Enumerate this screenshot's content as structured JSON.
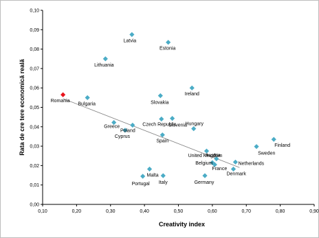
{
  "chart_data": {
    "type": "scatter",
    "xlabel": "Creativity index",
    "ylabel": "Rata de cre tere economică reală",
    "xlim": [
      0.1,
      0.9
    ],
    "ylim": [
      0.0,
      0.1
    ],
    "x_ticks": [
      "0,10",
      "0,20",
      "0,30",
      "0,40",
      "0,50",
      "0,60",
      "0,70",
      "0,80",
      "0,90"
    ],
    "y_ticks": [
      "0,00",
      "0,01",
      "0,02",
      "0,03",
      "0,04",
      "0,05",
      "0,06",
      "0,07",
      "0,08",
      "0,09",
      "0,10"
    ],
    "grid": false,
    "colors": {
      "points": "#4bacc6",
      "highlight": "#e8141c",
      "trendline": "#7f7f7f"
    },
    "trendline": {
      "x": [
        0.16,
        0.68
      ],
      "y": [
        0.0545,
        0.019
      ]
    },
    "points": [
      {
        "label": "Latvia",
        "x": 0.363,
        "y": 0.0875,
        "highlight": false
      },
      {
        "label": "Estonia",
        "x": 0.47,
        "y": 0.0835,
        "highlight": false
      },
      {
        "label": "Lithuania",
        "x": 0.285,
        "y": 0.075,
        "highlight": false
      },
      {
        "label": "Romania",
        "x": 0.16,
        "y": 0.0565,
        "highlight": true
      },
      {
        "label": "Bulgaria",
        "x": 0.232,
        "y": 0.055,
        "highlight": false
      },
      {
        "label": "Ireland",
        "x": 0.54,
        "y": 0.06,
        "highlight": false
      },
      {
        "label": "Slovakia",
        "x": 0.447,
        "y": 0.056,
        "highlight": false
      },
      {
        "label": "Slovenia",
        "x": 0.482,
        "y": 0.0443,
        "highlight": false
      },
      {
        "label": "Hungary",
        "x": 0.545,
        "y": 0.039,
        "highlight": false
      },
      {
        "label": "Czech Republic",
        "x": 0.45,
        "y": 0.044,
        "highlight": false
      },
      {
        "label": "Greece",
        "x": 0.31,
        "y": 0.0422,
        "highlight": false
      },
      {
        "label": "Poland",
        "x": 0.365,
        "y": 0.0408,
        "highlight": false
      },
      {
        "label": "Cyprus",
        "x": 0.343,
        "y": 0.0382,
        "highlight": false
      },
      {
        "label": "Spain",
        "x": 0.453,
        "y": 0.0358,
        "highlight": false
      },
      {
        "label": "United Kingdom",
        "x": 0.583,
        "y": 0.0275,
        "highlight": false
      },
      {
        "label": "Finland",
        "x": 0.781,
        "y": 0.0335,
        "highlight": false
      },
      {
        "label": "Sweden",
        "x": 0.73,
        "y": 0.0298,
        "highlight": false
      },
      {
        "label": "Austria",
        "x": 0.612,
        "y": 0.0235,
        "highlight": false
      },
      {
        "label": "Belgium",
        "x": 0.6,
        "y": 0.0215,
        "highlight": false
      },
      {
        "label": "France",
        "x": 0.607,
        "y": 0.0205,
        "highlight": false
      },
      {
        "label": "Netherlands",
        "x": 0.668,
        "y": 0.0218,
        "highlight": false
      },
      {
        "label": "Denmark",
        "x": 0.662,
        "y": 0.0182,
        "highlight": false
      },
      {
        "label": "Germany",
        "x": 0.578,
        "y": 0.0148,
        "highlight": false
      },
      {
        "label": "Malta",
        "x": 0.415,
        "y": 0.0182,
        "highlight": false
      },
      {
        "label": "Portugal",
        "x": 0.395,
        "y": 0.0145,
        "highlight": false
      },
      {
        "label": "Italy",
        "x": 0.455,
        "y": 0.0148,
        "highlight": false
      }
    ]
  }
}
